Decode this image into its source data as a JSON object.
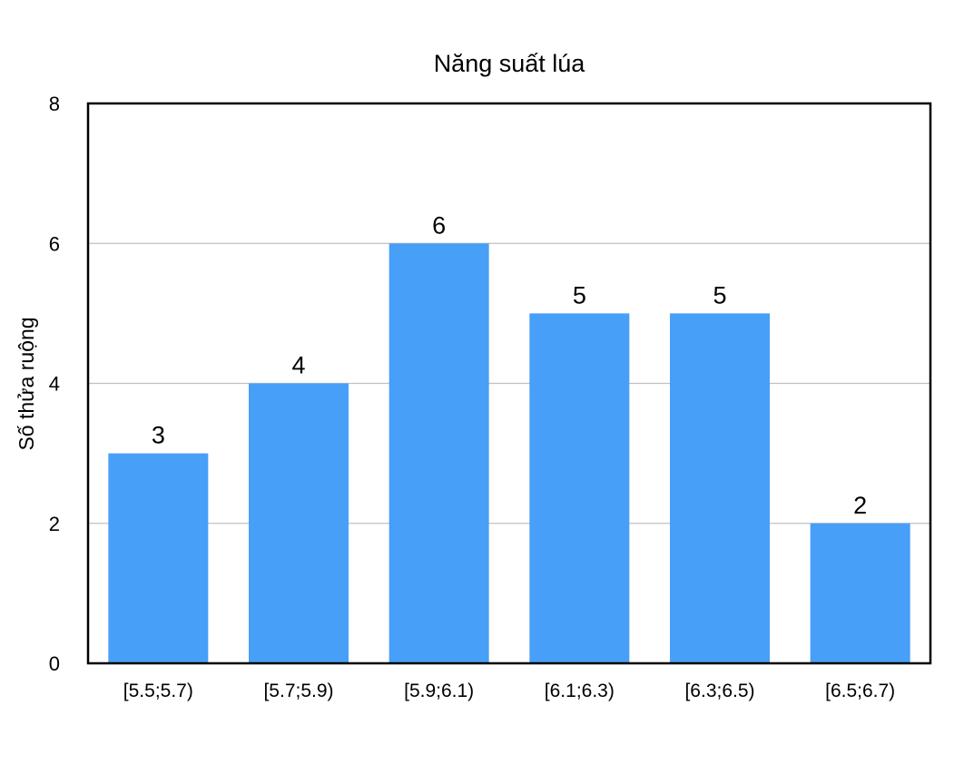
{
  "chart_data": {
    "type": "bar",
    "title": "Năng suất lúa",
    "xlabel": "",
    "ylabel": "Số thửa ruộng",
    "categories": [
      "[5.5;5.7)",
      "[5.7;5.9)",
      "[5.9;6.1)",
      "[6.1;6.3)",
      "[6.3;6.5)",
      "[6.5;6.7)"
    ],
    "values": [
      3,
      4,
      6,
      5,
      5,
      2
    ],
    "data_labels": [
      "3",
      "4",
      "6",
      "5",
      "5",
      "2"
    ],
    "ylim": [
      0,
      8
    ],
    "yticks": [
      0,
      2,
      4,
      6,
      8
    ],
    "ytick_labels": [
      "0",
      "2",
      "4",
      "6",
      "8"
    ],
    "grid": true,
    "legend": "none",
    "bar_color": "#479FF8",
    "grid_color": "#C0C0C0",
    "frame_color": "#000000"
  }
}
